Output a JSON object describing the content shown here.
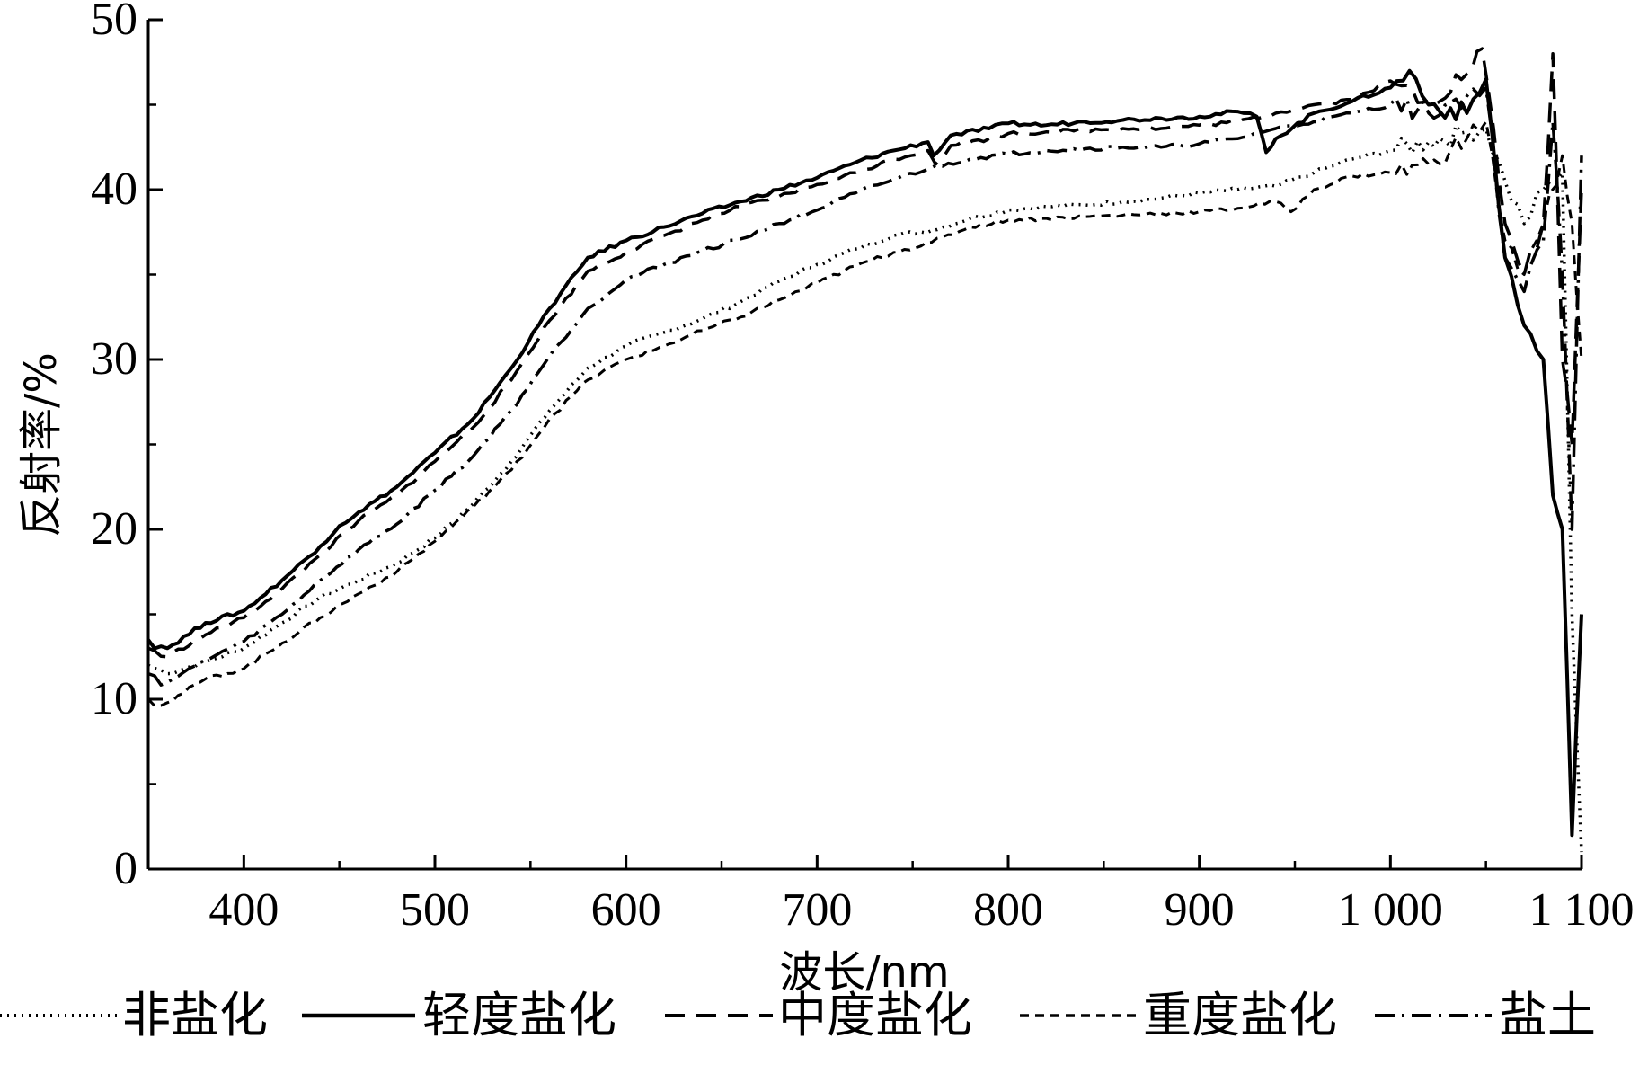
{
  "chart_data": {
    "type": "line",
    "title": "",
    "xlabel": "波长/nm",
    "ylabel": "反射率/%",
    "xlim": [
      350,
      1100
    ],
    "ylim": [
      0,
      50
    ],
    "x_ticks": [
      400,
      500,
      600,
      700,
      800,
      900,
      1000,
      1100
    ],
    "x_tick_labels": [
      "400",
      "500",
      "600",
      "700",
      "800",
      "900",
      "1 000",
      "1 100"
    ],
    "y_ticks": [
      0,
      10,
      20,
      30,
      40,
      50
    ],
    "y_tick_labels": [
      "0",
      "10",
      "20",
      "30",
      "40",
      "50"
    ],
    "grid": false,
    "legend_position": "bottom",
    "series": [
      {
        "name": "非盐化",
        "style": "dotted",
        "x": [
          350,
          360,
          380,
          400,
          420,
          440,
          460,
          480,
          500,
          520,
          540,
          560,
          580,
          600,
          620,
          640,
          660,
          680,
          700,
          720,
          740,
          760,
          780,
          800,
          820,
          840,
          860,
          880,
          900,
          920,
          940,
          960,
          980,
          1000,
          1020,
          1040,
          1050,
          1060,
          1070,
          1080,
          1090,
          1095,
          1100
        ],
        "y": [
          12,
          11.5,
          12.2,
          13,
          14.5,
          16,
          17,
          18,
          19.5,
          21.5,
          24,
          27,
          29.5,
          30.8,
          31.6,
          32.4,
          33.4,
          34.6,
          35.6,
          36.5,
          37.3,
          37.6,
          38.3,
          38.8,
          39,
          39.1,
          39.3,
          39.5,
          39.8,
          40,
          40.2,
          41,
          41.8,
          42.3,
          42.8,
          43.4,
          43.6,
          40.5,
          38,
          40,
          41,
          15,
          1
        ]
      },
      {
        "name": "轻度盐化",
        "style": "solid",
        "x": [
          350,
          360,
          380,
          400,
          420,
          440,
          450,
          460,
          480,
          500,
          520,
          540,
          560,
          580,
          600,
          620,
          640,
          660,
          680,
          700,
          720,
          740,
          758,
          761,
          770,
          790,
          800,
          820,
          840,
          860,
          880,
          900,
          920,
          930,
          935,
          940,
          960,
          980,
          1000,
          1010,
          1020,
          1040,
          1050,
          1060,
          1070,
          1080,
          1085,
          1090,
          1095,
          1100
        ],
        "y": [
          13.5,
          13,
          14.5,
          15.2,
          17,
          19,
          20.2,
          21,
          22.5,
          24.5,
          26.5,
          29.5,
          33,
          36,
          37,
          37.8,
          38.6,
          39.3,
          40,
          40.7,
          41.6,
          42.3,
          42.8,
          42,
          43.2,
          43.6,
          43.9,
          43.8,
          44,
          44.1,
          44.2,
          44.3,
          44.6,
          44.3,
          42.2,
          43,
          44.5,
          45.2,
          46,
          47,
          45,
          44.5,
          46.5,
          36,
          32,
          30,
          22,
          20,
          2,
          15
        ]
      },
      {
        "name": "中度盐化",
        "style": "dashed",
        "x": [
          350,
          360,
          380,
          400,
          420,
          440,
          460,
          480,
          500,
          520,
          540,
          560,
          580,
          600,
          620,
          640,
          660,
          680,
          700,
          720,
          740,
          758,
          762,
          770,
          790,
          800,
          820,
          840,
          860,
          880,
          900,
          920,
          940,
          960,
          980,
          1000,
          1020,
          1040,
          1048,
          1060,
          1070,
          1080,
          1085,
          1090,
          1095,
          1100
        ],
        "y": [
          13,
          12.5,
          13.8,
          14.8,
          16.5,
          18.5,
          20.5,
          22,
          24,
          26,
          28.8,
          32.3,
          35.2,
          36.3,
          37.3,
          38.2,
          39,
          39.6,
          40.3,
          41,
          41.8,
          42.3,
          41.5,
          42.6,
          43,
          43.3,
          43.4,
          43.5,
          43.6,
          43.6,
          43.8,
          44,
          44.5,
          45,
          45.3,
          46.4,
          45.2,
          46.8,
          48.3,
          38,
          35,
          38,
          48,
          30,
          25,
          40
        ]
      },
      {
        "name": "重度盐化",
        "style": "short-dash",
        "x": [
          350,
          360,
          380,
          400,
          420,
          440,
          460,
          480,
          500,
          520,
          540,
          560,
          580,
          600,
          620,
          640,
          660,
          680,
          700,
          720,
          740,
          760,
          780,
          800,
          820,
          840,
          860,
          880,
          900,
          920,
          940,
          948,
          960,
          980,
          1000,
          1020,
          1040,
          1050,
          1060,
          1070,
          1080,
          1090,
          1095,
          1100
        ],
        "y": [
          10,
          9.8,
          11.2,
          11.8,
          13.3,
          14.8,
          16.2,
          17.5,
          19.3,
          21.3,
          23.5,
          26.5,
          28.8,
          30,
          30.8,
          31.7,
          32.5,
          33.5,
          34.5,
          35.5,
          36.3,
          36.9,
          37.8,
          38.2,
          38.3,
          38.4,
          38.5,
          38.6,
          38.7,
          38.9,
          39.3,
          38.7,
          40,
          40.8,
          41,
          41.5,
          43,
          44,
          37,
          35,
          38,
          42,
          38,
          30
        ]
      },
      {
        "name": "盐土",
        "style": "dash-dot",
        "x": [
          350,
          360,
          380,
          400,
          420,
          440,
          460,
          480,
          500,
          520,
          540,
          560,
          580,
          600,
          620,
          640,
          660,
          680,
          700,
          720,
          740,
          760,
          780,
          800,
          820,
          840,
          860,
          880,
          900,
          920,
          940,
          960,
          980,
          1000,
          1020,
          1040,
          1050,
          1060,
          1070,
          1080,
          1085,
          1090,
          1095,
          1100
        ],
        "y": [
          11.5,
          11,
          12.3,
          13.4,
          15,
          17,
          18.8,
          20.3,
          22.3,
          24.3,
          27,
          30.2,
          33,
          34.7,
          35.6,
          36.4,
          37.1,
          38,
          38.8,
          39.8,
          40.6,
          41.3,
          41.8,
          42.1,
          42.3,
          42.4,
          42.5,
          42.5,
          42.7,
          43,
          43.6,
          44,
          44.5,
          45,
          44.5,
          45.5,
          46,
          36,
          34,
          37,
          44,
          35,
          20,
          42
        ]
      }
    ]
  }
}
